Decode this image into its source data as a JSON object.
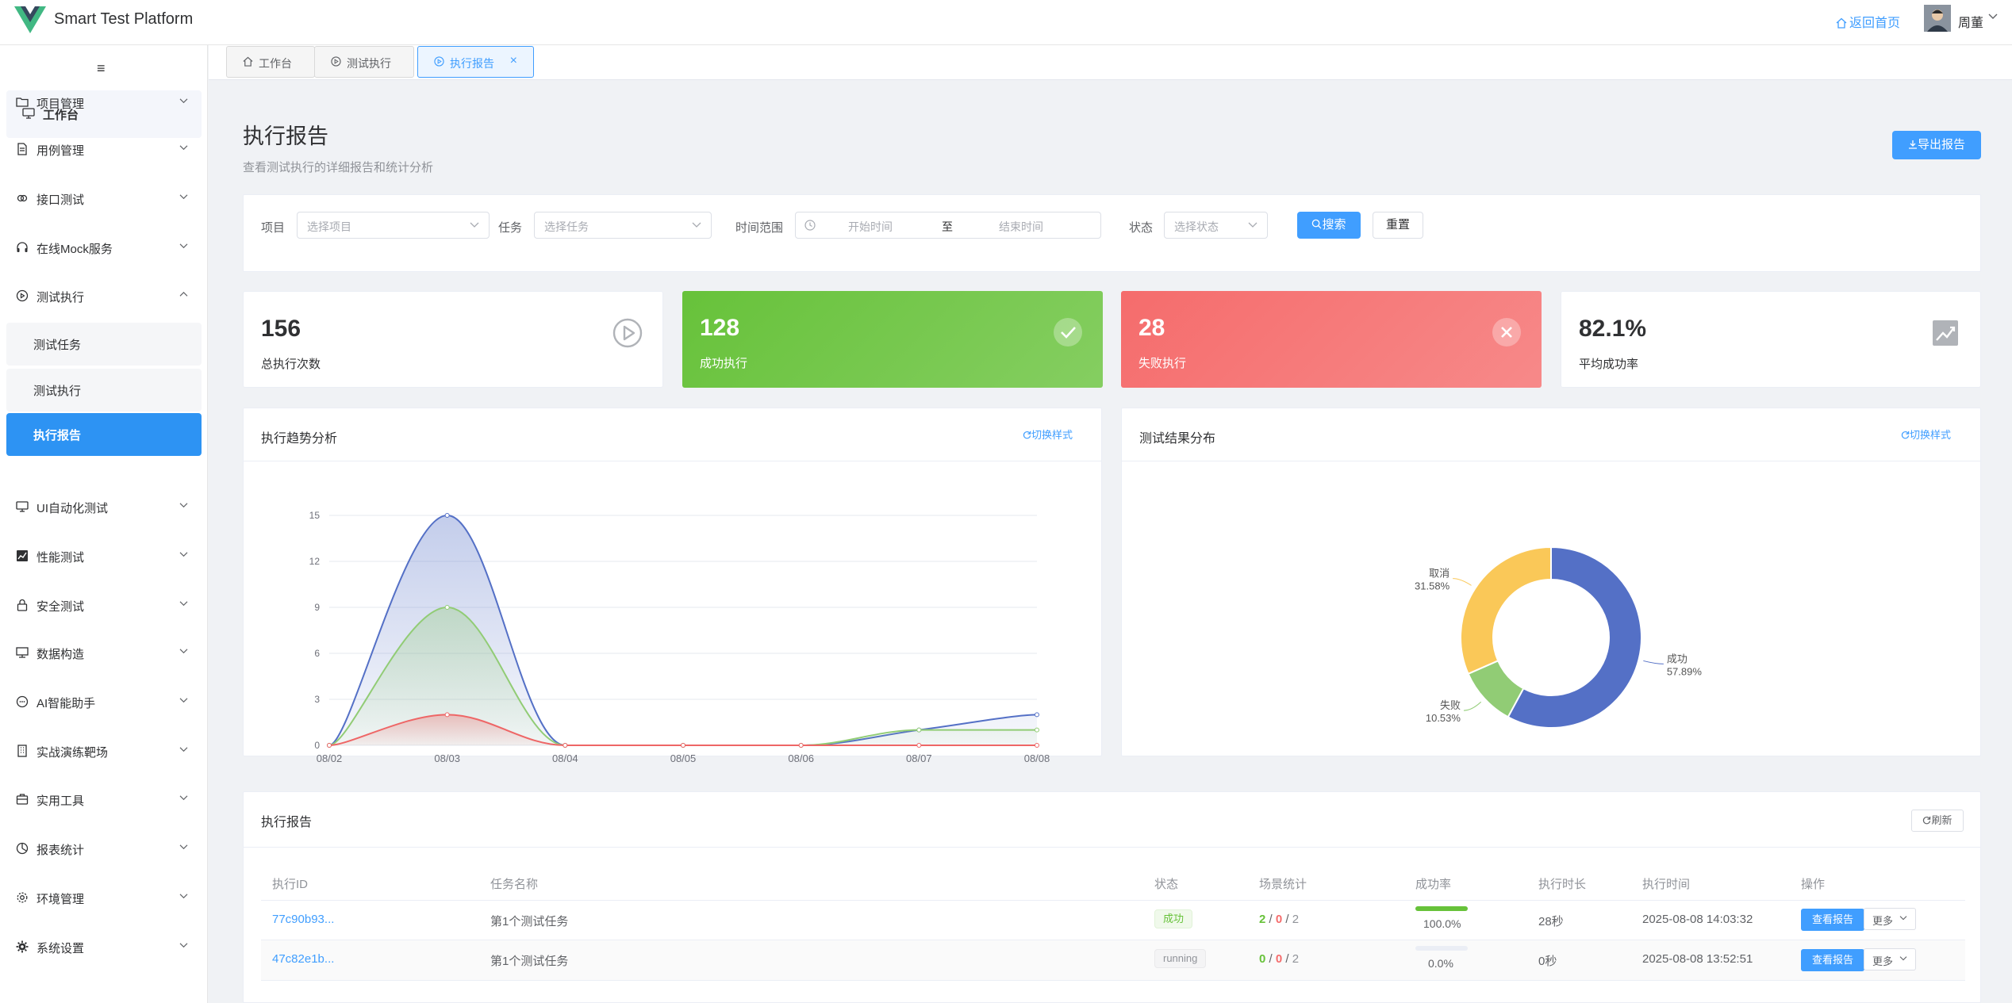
{
  "header": {
    "app_title": "Smart Test Platform",
    "home_link": "返回首页",
    "user_name": "周董"
  },
  "sidebar": {
    "workbench": "工作台",
    "items": [
      {
        "label": "项目管理",
        "icon": "folder-icon"
      },
      {
        "label": "用例管理",
        "icon": "document-icon"
      },
      {
        "label": "接口测试",
        "icon": "link-icon"
      },
      {
        "label": "在线Mock服务",
        "icon": "headset-icon"
      },
      {
        "label": "测试执行",
        "icon": "play-circle-icon",
        "expanded": true
      },
      {
        "label": "UI自动化测试",
        "icon": "monitor-icon"
      },
      {
        "label": "性能测试",
        "icon": "chart-icon"
      },
      {
        "label": "安全测试",
        "icon": "lock-icon"
      },
      {
        "label": "数据构造",
        "icon": "box-icon"
      },
      {
        "label": "AI智能助手",
        "icon": "chat-icon"
      },
      {
        "label": "实战演练靶场",
        "icon": "building-icon"
      },
      {
        "label": "实用工具",
        "icon": "toolbox-icon"
      },
      {
        "label": "报表统计",
        "icon": "pie-icon"
      },
      {
        "label": "环境管理",
        "icon": "gear-icon"
      },
      {
        "label": "系统设置",
        "icon": "settings-icon"
      }
    ],
    "sub_items": [
      {
        "label": "测试任务",
        "active": false
      },
      {
        "label": "测试执行",
        "active": false
      },
      {
        "label": "执行报告",
        "active": true
      }
    ]
  },
  "tabs": [
    {
      "label": "工作台",
      "active": false
    },
    {
      "label": "测试执行",
      "active": false
    },
    {
      "label": "执行报告",
      "active": true
    }
  ],
  "page": {
    "title": "执行报告",
    "subtitle": "查看测试执行的详细报告和统计分析",
    "export_label": "导出报告"
  },
  "filters": {
    "project_label": "项目",
    "project_placeholder": "选择项目",
    "task_label": "任务",
    "task_placeholder": "选择任务",
    "time_label": "时间范围",
    "start_placeholder": "开始时间",
    "range_sep": "至",
    "end_placeholder": "结束时间",
    "status_label": "状态",
    "status_placeholder": "选择状态",
    "search_label": "搜索",
    "reset_label": "重置"
  },
  "stats": [
    {
      "value": "156",
      "label": "总执行次数"
    },
    {
      "value": "128",
      "label": "成功执行"
    },
    {
      "value": "28",
      "label": "失败执行"
    },
    {
      "value": "82.1%",
      "label": "平均成功率"
    }
  ],
  "trend_card": {
    "title": "执行趋势分析",
    "switch_label": "切换样式"
  },
  "dist_card": {
    "title": "测试结果分布",
    "switch_label": "切换样式"
  },
  "chart_data": [
    {
      "type": "area",
      "title": "",
      "x": [
        "08/02",
        "08/03",
        "08/04",
        "08/05",
        "08/06",
        "08/07",
        "08/08"
      ],
      "ylim": [
        0,
        15
      ],
      "yticks": [
        0,
        3,
        6,
        9,
        12,
        15
      ],
      "grid": true,
      "series": [
        {
          "values": [
            0,
            15,
            0,
            0,
            0,
            1,
            2
          ],
          "color": "#5470c6"
        },
        {
          "values": [
            0,
            9,
            0,
            0,
            0,
            1,
            1
          ],
          "color": "#91cc75"
        },
        {
          "values": [
            0,
            2,
            0,
            0,
            0,
            0,
            0
          ],
          "color": "#ee6666"
        }
      ]
    },
    {
      "type": "pie",
      "title": "",
      "labels": [
        "成功",
        "失败",
        "取消"
      ],
      "percent_labels": [
        "57.89%",
        "10.53%",
        "31.58%"
      ],
      "values": [
        57.89,
        10.53,
        31.58
      ],
      "colors": [
        "#5470c6",
        "#91cc75",
        "#fac858"
      ]
    }
  ],
  "report": {
    "title": "执行报告",
    "refresh_label": "刷新",
    "columns": [
      "执行ID",
      "任务名称",
      "状态",
      "场景统计",
      "成功率",
      "执行时长",
      "执行时间",
      "操作"
    ],
    "rows": [
      {
        "id": "77c90b93...",
        "task": "第1个测试任务",
        "status": "成功",
        "status_type": "ok",
        "passed": "2",
        "failed": "0",
        "total": "2",
        "rate": "100.0%",
        "rate_value": 1.0,
        "duration": "28秒",
        "time": "2025-08-08 14:03:32",
        "view_label": "查看报告",
        "more_label": "更多"
      },
      {
        "id": "47c82e1b...",
        "task": "第1个测试任务",
        "status": "running",
        "status_type": "run",
        "passed": "0",
        "failed": "0",
        "total": "2",
        "rate": "0.0%",
        "rate_value": 0.0,
        "duration": "0秒",
        "time": "2025-08-08 13:52:51",
        "view_label": "查看报告",
        "more_label": "更多"
      }
    ]
  }
}
